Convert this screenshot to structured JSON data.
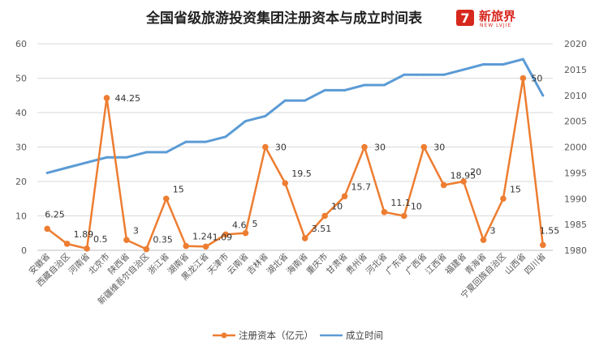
{
  "chart_data": {
    "type": "line",
    "title": "全国省级旅游投资集团注册资本与成立时间表",
    "categories": [
      "安徽省",
      "西藏自治区",
      "河南省",
      "北京市",
      "陕西省",
      "新疆维吾尔自治区",
      "浙江省",
      "湖南省",
      "黑龙江省",
      "天津市",
      "云南省",
      "吉林省",
      "湖北省",
      "海南省",
      "重庆市",
      "甘肃省",
      "贵州省",
      "河北省",
      "广东省",
      "广西省",
      "江西省",
      "福建省",
      "青海省",
      "宁夏回族自治区",
      "山西省",
      "四川省"
    ],
    "series": [
      {
        "name": "注册资本（亿元）",
        "axis": "left",
        "color": "#ed7d31",
        "values": [
          6.25,
          1.89,
          0.5,
          44.25,
          3,
          0.35,
          15,
          1.24,
          1.09,
          4.6,
          5,
          30,
          19.5,
          3.51,
          10,
          15.7,
          30,
          11.1,
          10,
          30,
          18.95,
          20,
          3,
          15,
          50,
          1.55
        ],
        "labels": [
          "6.25",
          "1.89",
          "0.5",
          "44.25",
          "3",
          "0.35",
          "15",
          "1.24",
          "1.09",
          "4.6",
          "5",
          "30",
          "19.5",
          "3.51",
          "10",
          "15.7",
          "30",
          "11.1",
          "10",
          "30",
          "18.95",
          "20",
          "3",
          "15",
          "50",
          "1.55"
        ]
      },
      {
        "name": "成立时间",
        "axis": "right",
        "color": "#5b9bd5",
        "values": [
          1995,
          1996,
          1997,
          1998,
          1998,
          1999,
          1999,
          2001,
          2001,
          2002,
          2005,
          2006,
          2009,
          2009,
          2011,
          2011,
          2012,
          2012,
          2014,
          2014,
          2014,
          2015,
          2016,
          2016,
          2017,
          2010
        ]
      }
    ],
    "ylim_left": [
      0,
      60
    ],
    "yticks_left": [
      0,
      10,
      20,
      30,
      40,
      50,
      60
    ],
    "ylim_right": [
      1980,
      2020
    ],
    "yticks_right": [
      1980,
      1985,
      1990,
      1995,
      2000,
      2005,
      2010,
      2015,
      2020
    ],
    "grid": true,
    "legend_position": "bottom"
  },
  "logo": {
    "mark": "7",
    "name": "新旅界",
    "subtitle": "NEW LVJIE"
  }
}
